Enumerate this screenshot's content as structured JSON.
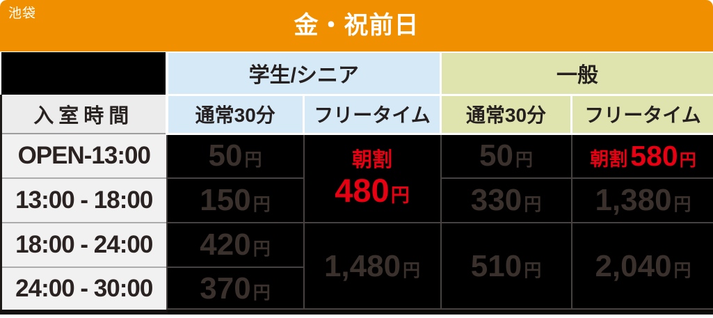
{
  "meta": {
    "location": "池袋",
    "title": "金・祝前日"
  },
  "colors": {
    "header_orange": "#F08F00",
    "student_blue": "#D5E9F6",
    "general_green": "#DFE4AE",
    "highlight_red": "#E60012",
    "cell_black": "#000000",
    "price_text_dark": "#3A302C"
  },
  "table": {
    "entry_time_header": "入室時間",
    "groups": {
      "student": "学生/シニア",
      "general": "一般"
    },
    "col_headers": {
      "regular": "通常30分",
      "freetime": "フリータイム"
    },
    "yen": "円",
    "morning_discount": "朝割",
    "time_slots": [
      "OPEN-13:00",
      "13:00 - 18:00",
      "18:00 - 24:00",
      "24:00 - 30:00"
    ],
    "student_regular": [
      "50",
      "150",
      "420",
      "370"
    ],
    "student_freetime": {
      "morning": "480",
      "night": "1,480"
    },
    "general_regular": {
      "r1": "50",
      "r2": "330",
      "r3_4": "510"
    },
    "general_freetime": {
      "morning": "580",
      "r2": "1,380",
      "r3_4": "2,040"
    }
  },
  "chart_data": {
    "type": "table",
    "title": "金・祝前日",
    "location": "池袋",
    "columns": [
      "入室時間",
      "学生/シニア 通常30分",
      "学生/シニア フリータイム",
      "一般 通常30分",
      "一般 フリータイム"
    ],
    "rows": [
      [
        "OPEN-13:00",
        "50円",
        "朝割480円",
        "50円",
        "朝割580円"
      ],
      [
        "13:00 - 18:00",
        "150円",
        "朝割480円",
        "330円",
        "1,380円"
      ],
      [
        "18:00 - 24:00",
        "420円",
        "1,480円",
        "510円",
        "2,040円"
      ],
      [
        "24:00 - 30:00",
        "370円",
        "1,480円",
        "510円",
        "2,040円"
      ]
    ],
    "merged_cells": [
      {
        "column": "学生/シニア フリータイム",
        "rows": [
          "OPEN-13:00",
          "13:00 - 18:00"
        ],
        "value": "朝割480円"
      },
      {
        "column": "学生/シニア フリータイム",
        "rows": [
          "18:00 - 24:00",
          "24:00 - 30:00"
        ],
        "value": "1,480円"
      },
      {
        "column": "一般 通常30分",
        "rows": [
          "18:00 - 24:00",
          "24:00 - 30:00"
        ],
        "value": "510円"
      },
      {
        "column": "一般 フリータイム",
        "rows": [
          "18:00 - 24:00",
          "24:00 - 30:00"
        ],
        "value": "2,040円"
      }
    ],
    "highlighted_values": [
      "朝割480円",
      "朝割580円"
    ],
    "legend_position": "none",
    "grid": true
  }
}
